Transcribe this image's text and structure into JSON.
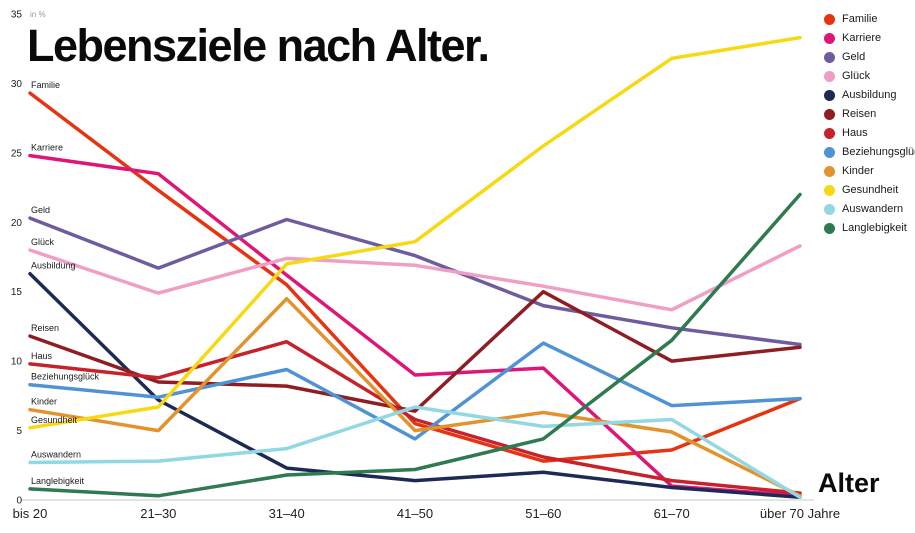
{
  "title": "Lebensziele nach Alter.",
  "y_axis_unit": "in %",
  "x_axis_title": "Alter",
  "chart_data": {
    "type": "line",
    "x": [
      "bis 20",
      "21–30",
      "31–40",
      "41–50",
      "51–60",
      "61–70",
      "über 70 Jahre"
    ],
    "ylim": [
      0,
      35
    ],
    "yticks": [
      0,
      5,
      10,
      15,
      20,
      25,
      30,
      35
    ],
    "grid": false,
    "legend_position": "top-right",
    "series": [
      {
        "name": "Familie",
        "color": "#e63312",
        "values": [
          29.3,
          22.3,
          15.5,
          5.5,
          2.8,
          3.6,
          7.3
        ]
      },
      {
        "name": "Karriere",
        "color": "#dd1677",
        "values": [
          24.8,
          23.5,
          16.2,
          9.0,
          9.5,
          1.0,
          0.3
        ]
      },
      {
        "name": "Geld",
        "color": "#6f5c9e",
        "values": [
          20.3,
          16.7,
          20.2,
          17.6,
          14.0,
          12.4,
          11.2
        ]
      },
      {
        "name": "Glück",
        "color": "#ef9fc4",
        "values": [
          18.0,
          14.9,
          17.4,
          16.9,
          15.4,
          13.7,
          18.3
        ]
      },
      {
        "name": "Ausbildung",
        "color": "#1e2a56",
        "values": [
          16.3,
          7.2,
          2.3,
          1.4,
          2.0,
          0.9,
          0.2
        ]
      },
      {
        "name": "Reisen",
        "color": "#8e1d24",
        "values": [
          11.8,
          8.5,
          8.2,
          6.4,
          15.0,
          10.0,
          11.0
        ]
      },
      {
        "name": "Haus",
        "color": "#c6222b",
        "values": [
          9.8,
          8.8,
          11.4,
          5.8,
          3.1,
          1.4,
          0.5
        ]
      },
      {
        "name": "Beziehungsglück",
        "color": "#4f93d4",
        "values": [
          8.3,
          7.4,
          9.4,
          4.4,
          11.3,
          6.8,
          7.3
        ]
      },
      {
        "name": "Kinder",
        "color": "#e3932e",
        "values": [
          6.5,
          5.0,
          14.5,
          5.0,
          6.3,
          4.9,
          0.3
        ]
      },
      {
        "name": "Gesundheit",
        "color": "#f6d912",
        "values": [
          5.2,
          6.7,
          17.0,
          18.6,
          25.5,
          31.8,
          33.3
        ]
      },
      {
        "name": "Auswandern",
        "color": "#92d8e2",
        "values": [
          2.7,
          2.8,
          3.7,
          6.7,
          5.3,
          5.8,
          0.2
        ]
      },
      {
        "name": "Langlebigkeit",
        "color": "#2f7a50",
        "values": [
          0.8,
          0.3,
          1.8,
          2.2,
          4.4,
          11.5,
          22.0
        ]
      }
    ]
  }
}
